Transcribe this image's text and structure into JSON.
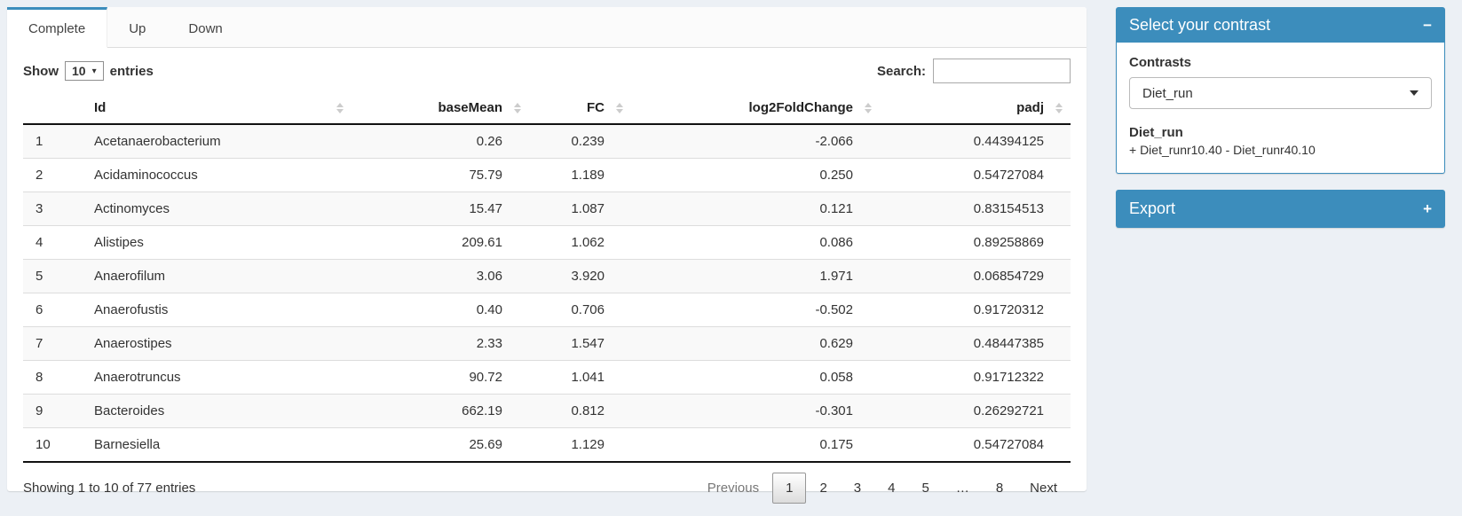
{
  "page": {
    "background": "#ecf0f5",
    "accent_blue": "#3c8dbc",
    "stripe_color": "#f9f9f9"
  },
  "tabs": [
    {
      "label": "Complete",
      "active": true
    },
    {
      "label": "Up",
      "active": false
    },
    {
      "label": "Down",
      "active": false
    }
  ],
  "length_control": {
    "prefix": "Show",
    "value": "10",
    "suffix": "entries"
  },
  "search": {
    "label": "Search:",
    "value": ""
  },
  "table": {
    "columns": [
      {
        "label": "",
        "sortable": false,
        "align": "left"
      },
      {
        "label": "Id",
        "sortable": true,
        "align": "left"
      },
      {
        "label": "baseMean",
        "sortable": true,
        "align": "right"
      },
      {
        "label": "FC",
        "sortable": true,
        "align": "right"
      },
      {
        "label": "log2FoldChange",
        "sortable": true,
        "align": "right"
      },
      {
        "label": "padj",
        "sortable": true,
        "align": "right"
      }
    ],
    "rows": [
      [
        "1",
        "Acetanaerobacterium",
        "0.26",
        "0.239",
        "-2.066",
        "0.44394125"
      ],
      [
        "2",
        "Acidaminococcus",
        "75.79",
        "1.189",
        "0.250",
        "0.54727084"
      ],
      [
        "3",
        "Actinomyces",
        "15.47",
        "1.087",
        "0.121",
        "0.83154513"
      ],
      [
        "4",
        "Alistipes",
        "209.61",
        "1.062",
        "0.086",
        "0.89258869"
      ],
      [
        "5",
        "Anaerofilum",
        "3.06",
        "3.920",
        "1.971",
        "0.06854729"
      ],
      [
        "6",
        "Anaerofustis",
        "0.40",
        "0.706",
        "-0.502",
        "0.91720312"
      ],
      [
        "7",
        "Anaerostipes",
        "2.33",
        "1.547",
        "0.629",
        "0.48447385"
      ],
      [
        "8",
        "Anaerotruncus",
        "90.72",
        "1.041",
        "0.058",
        "0.91712322"
      ],
      [
        "9",
        "Bacteroides",
        "662.19",
        "0.812",
        "-0.301",
        "0.26292721"
      ],
      [
        "10",
        "Barnesiella",
        "25.69",
        "1.129",
        "0.175",
        "0.54727084"
      ]
    ]
  },
  "footer": {
    "info": "Showing 1 to 10 of 77 entries"
  },
  "pagination": {
    "previous_label": "Previous",
    "next_label": "Next",
    "pages": [
      "1",
      "2",
      "3",
      "4",
      "5",
      "…",
      "8"
    ],
    "current": "1"
  },
  "contrast_box": {
    "title": "Select your contrast",
    "collapse_glyph": "−",
    "contrasts_label": "Contrasts",
    "select_value": "Diet_run",
    "detail_title": "Diet_run",
    "detail_formula": "+ Diet_runr10.40 - Diet_runr40.10"
  },
  "export_box": {
    "title": "Export",
    "expand_glyph": "+"
  },
  "icons": {
    "mini_select_caret": "▾"
  }
}
